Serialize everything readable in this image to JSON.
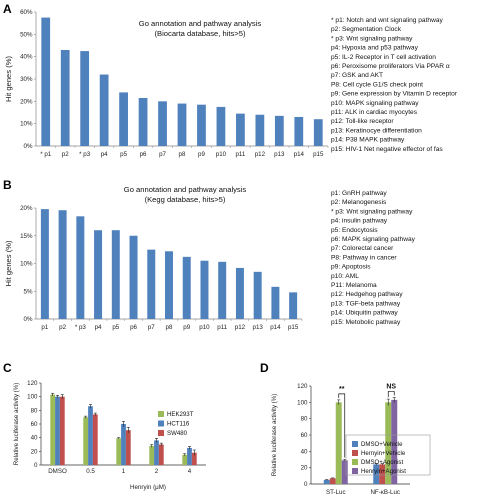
{
  "chart_data": [
    {
      "panel": "A",
      "type": "bar",
      "title_line1": "Go annotation and pathway analysis",
      "title_line2": "(Biocarta database, hits>5)",
      "ylabel": "Hit genes (%)",
      "ylim": [
        0,
        60
      ],
      "yticks": [
        "0%",
        "10%",
        "20%",
        "30%",
        "40%",
        "50%",
        "60%"
      ],
      "categories": [
        "* p1",
        "p2",
        "* p3",
        "p4",
        "p5",
        "p6",
        "p7",
        "p8",
        "p9",
        "p10",
        "p11",
        "p12",
        "p13",
        "p14",
        "p15"
      ],
      "values": [
        57.5,
        43,
        42.5,
        32,
        24,
        21.5,
        20,
        19,
        18.5,
        17.5,
        14.5,
        14,
        13.5,
        13,
        12
      ],
      "color": "#4f81bd",
      "legend": [
        "* p1: Notch and wnt signaling pathway",
        "p2: Segmentation Clock",
        "* p3: Wnt signaling pathway",
        "p4: Hypoxia and p53 pathway",
        "p5: IL-2 Receptor in T cell activation",
        "p6: Peroxisome proliferators Via PPAR α",
        "p7: GSK and AKT",
        "P8: Cell cycle G1/S check point",
        "p9: Gene expression by Vitamin D receptor",
        "p10: MAPK signaling pathway",
        "p11: ALK in cardiac myocytes",
        "p12: Toll-like receptor",
        "p13: Keratinocye differentiation",
        "p14: P38 MAPK pathway",
        "p15: HIV-1 Net negative effector of fas"
      ]
    },
    {
      "panel": "B",
      "type": "bar",
      "title_line1": "Go annotation and pathway analysis",
      "title_line2": "(Kegg database, hits>5)",
      "ylabel": "Hit genes (%)",
      "ylim": [
        0,
        20
      ],
      "yticks": [
        "0%",
        "5%",
        "10%",
        "15%",
        "20%"
      ],
      "categories": [
        "p1",
        "p2",
        "* p3",
        "p4",
        "p5",
        "p6",
        "p7",
        "p8",
        "p9",
        "p10",
        "p11",
        "p12",
        "p13",
        "p14",
        "p15"
      ],
      "values": [
        19.8,
        19.6,
        18.5,
        16,
        16,
        15,
        12.5,
        12.2,
        11.2,
        10.5,
        10.3,
        9.2,
        8.5,
        5.8,
        4.8
      ],
      "color": "#4f81bd",
      "legend": [
        "p1: GnRH pathway",
        "p2: Melanogenesis",
        "* p3: Wnt signaling pathway",
        "p4: insulin pathway",
        "p5: Endocytosis",
        "p6: MAPK signaling pathway",
        "p7: Colorectal cancer",
        "P8: Pathway in cancer",
        "p9: Apoptosis",
        "p10: AML",
        "P11: Melanoma",
        "p12: Hedgehog pathway",
        "p13: TGF-beta pathway",
        "p14: Ubiquitin pathway",
        "p15: Metobolic pathway"
      ]
    },
    {
      "panel": "C",
      "type": "bar",
      "ylabel": "Relative luciferase activity (%)",
      "xlabel": "Henryin (μM)",
      "ylim": [
        0,
        120
      ],
      "yticks": [
        "0",
        "20",
        "40",
        "60",
        "80",
        "100",
        "120"
      ],
      "categories": [
        "DMSO",
        "0.5",
        "1",
        "2",
        "4"
      ],
      "series": [
        {
          "name": "HEK293T",
          "color": "#9bbb59",
          "values": [
            103,
            70,
            39,
            28,
            15
          ],
          "errors": [
            2,
            1.5,
            1,
            2,
            1.5
          ]
        },
        {
          "name": "HCT116",
          "color": "#4f81bd",
          "values": [
            100,
            86,
            60,
            36,
            25
          ],
          "errors": [
            2,
            2.5,
            4,
            3,
            2
          ]
        },
        {
          "name": "SW480",
          "color": "#c0504d",
          "values": [
            100,
            74,
            51,
            30,
            18
          ],
          "errors": [
            3,
            2,
            4,
            2,
            4
          ]
        }
      ]
    },
    {
      "panel": "D",
      "type": "bar",
      "ylabel": "Relative luciferase activity (%)",
      "ylim": [
        0,
        120
      ],
      "yticks": [
        "0",
        "20",
        "40",
        "60",
        "80",
        "100",
        "120"
      ],
      "categories": [
        "ST-Luc",
        "NF-κB-Luc"
      ],
      "series": [
        {
          "name": "DMSO+Vehicle",
          "color": "#4f81bd",
          "values": [
            5,
            24
          ],
          "errors": [
            0.5,
            1
          ]
        },
        {
          "name": "Hernyin+Vehicle",
          "color": "#c0504d",
          "values": [
            7,
            24
          ],
          "errors": [
            0.5,
            1
          ]
        },
        {
          "name": "DMSO+Agonist",
          "color": "#9bbb59",
          "values": [
            100,
            100
          ],
          "errors": [
            3,
            4
          ]
        },
        {
          "name": "Henryin+Agonist",
          "color": "#8064a2",
          "values": [
            29,
            103
          ],
          "errors": [
            1,
            3
          ]
        }
      ],
      "annotations": [
        {
          "text": "**",
          "category": "ST-Luc"
        },
        {
          "text": "NS",
          "category": "NF-κB-Luc"
        }
      ]
    }
  ]
}
